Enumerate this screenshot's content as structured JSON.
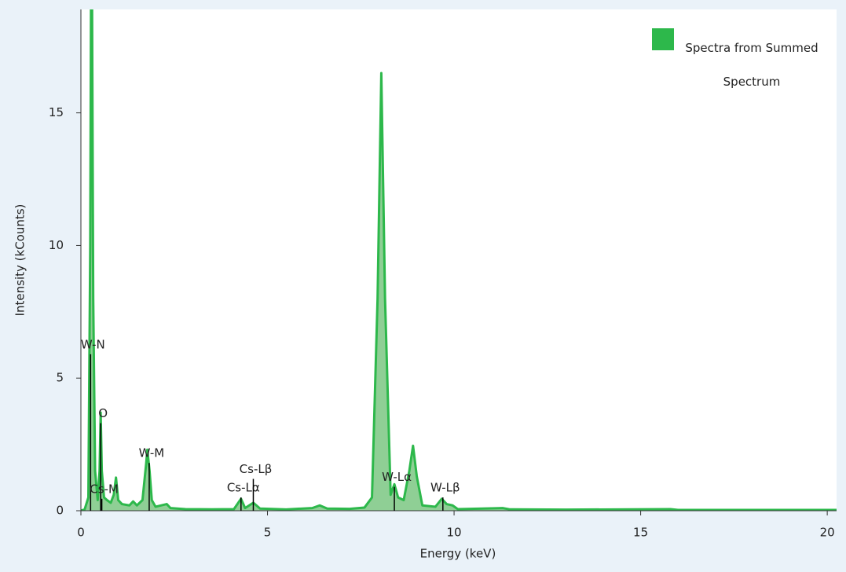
{
  "chart_data": {
    "type": "area",
    "xlabel": "Energy (keV)",
    "ylabel": "Intensity (kCounts)",
    "xlim": [
      0,
      20.25
    ],
    "ylim": [
      0,
      18.9
    ],
    "xticks": [
      0,
      5,
      10,
      15,
      20
    ],
    "yticks": [
      0,
      5,
      10,
      15
    ],
    "legend": "top-right",
    "series": [
      {
        "name": "Spectra from Summed Spectrum",
        "color": "#2db84b",
        "fill": "#8fcf95",
        "x": [
          0,
          0.1,
          0.2,
          0.25,
          0.27,
          0.3,
          0.33,
          0.38,
          0.45,
          0.5,
          0.53,
          0.56,
          0.62,
          0.7,
          0.8,
          0.88,
          0.94,
          1.0,
          1.1,
          1.3,
          1.4,
          1.5,
          1.65,
          1.75,
          1.78,
          1.84,
          1.9,
          2.0,
          2.3,
          2.4,
          2.8,
          3.5,
          4.1,
          4.29,
          4.4,
          4.62,
          4.8,
          5.5,
          6.2,
          6.4,
          6.6,
          7.2,
          7.6,
          7.8,
          7.95,
          8.05,
          8.15,
          8.3,
          8.4,
          8.5,
          8.65,
          8.8,
          8.9,
          9.0,
          9.15,
          9.5,
          9.67,
          9.8,
          9.96,
          10.1,
          11.3,
          11.5,
          13,
          15.8,
          16,
          20.25
        ],
        "values": [
          0,
          0.05,
          0.5,
          10,
          18.9,
          18.9,
          8,
          1.5,
          0.4,
          1.5,
          3.7,
          1.5,
          0.5,
          0.4,
          0.3,
          0.6,
          1.25,
          0.4,
          0.25,
          0.2,
          0.35,
          0.2,
          0.4,
          1.8,
          2.3,
          1.5,
          0.4,
          0.15,
          0.25,
          0.1,
          0.06,
          0.05,
          0.06,
          0.45,
          0.1,
          0.3,
          0.08,
          0.05,
          0.1,
          0.2,
          0.08,
          0.07,
          0.12,
          0.5,
          8,
          16.5,
          8,
          0.6,
          1.0,
          0.5,
          0.4,
          1.5,
          2.45,
          1.3,
          0.2,
          0.15,
          0.45,
          0.25,
          0.2,
          0.06,
          0.1,
          0.05,
          0.04,
          0.06,
          0.03,
          0.03
        ]
      }
    ],
    "markers": [
      {
        "label": "W-N",
        "x": 0.26,
        "height": 5.9
      },
      {
        "label": "O",
        "x": 0.53,
        "height": 3.3
      },
      {
        "label": "Cs-M",
        "x": 0.56,
        "height": 0.45
      },
      {
        "label": "W-M",
        "x": 1.83,
        "height": 1.8
      },
      {
        "label": "Cs-Lα",
        "x": 4.29,
        "height": 0.5
      },
      {
        "label": "Cs-Lβ",
        "x": 4.62,
        "height": 1.2
      },
      {
        "label": "W-Lα",
        "x": 8.4,
        "height": 0.9
      },
      {
        "label": "W-Lβ",
        "x": 9.7,
        "height": 0.5
      }
    ]
  }
}
